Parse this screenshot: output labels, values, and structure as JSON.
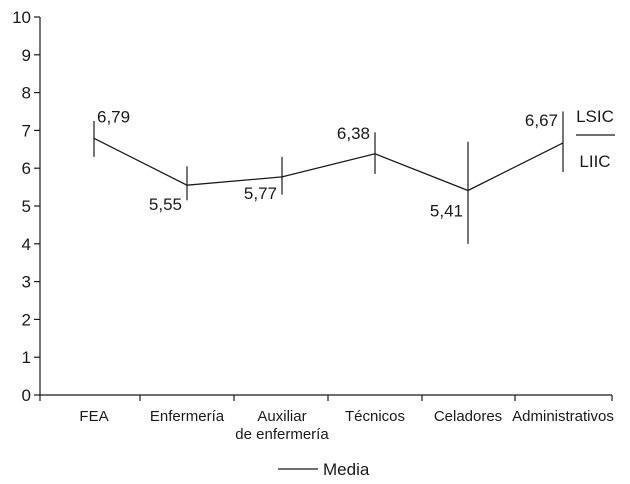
{
  "chart_data": {
    "type": "line",
    "categories": [
      "FEA",
      "Enfermería",
      "Auxiliar de enfermería",
      "Técnicos",
      "Celadores",
      "Administrativos"
    ],
    "category_label_lines": [
      [
        "FEA"
      ],
      [
        "Enfermería"
      ],
      [
        "Auxiliar",
        "de enfermería"
      ],
      [
        "Técnicos"
      ],
      [
        "Celadores"
      ],
      [
        "Administrativos"
      ]
    ],
    "series": [
      {
        "name": "Media",
        "values": [
          6.79,
          5.55,
          5.77,
          6.38,
          5.41,
          6.67
        ],
        "value_labels": [
          "6,79",
          "5,55",
          "5,77",
          "6,38",
          "5,41",
          "6,67"
        ],
        "ci_upper": [
          7.25,
          6.05,
          6.3,
          6.95,
          6.7,
          7.5
        ],
        "ci_lower": [
          6.3,
          5.15,
          5.3,
          5.85,
          4.0,
          5.9
        ]
      }
    ],
    "ylim": [
      0,
      10
    ],
    "yticks": [
      0,
      1,
      2,
      3,
      4,
      5,
      6,
      7,
      8,
      9,
      10
    ],
    "ci_key": {
      "upper": "LSIC",
      "lower": "LIIC"
    },
    "legend": "bottom",
    "grid": false,
    "colors": {
      "line": "#1a1a1a",
      "text": "#1a1a1a",
      "background": "#ffffff"
    }
  }
}
